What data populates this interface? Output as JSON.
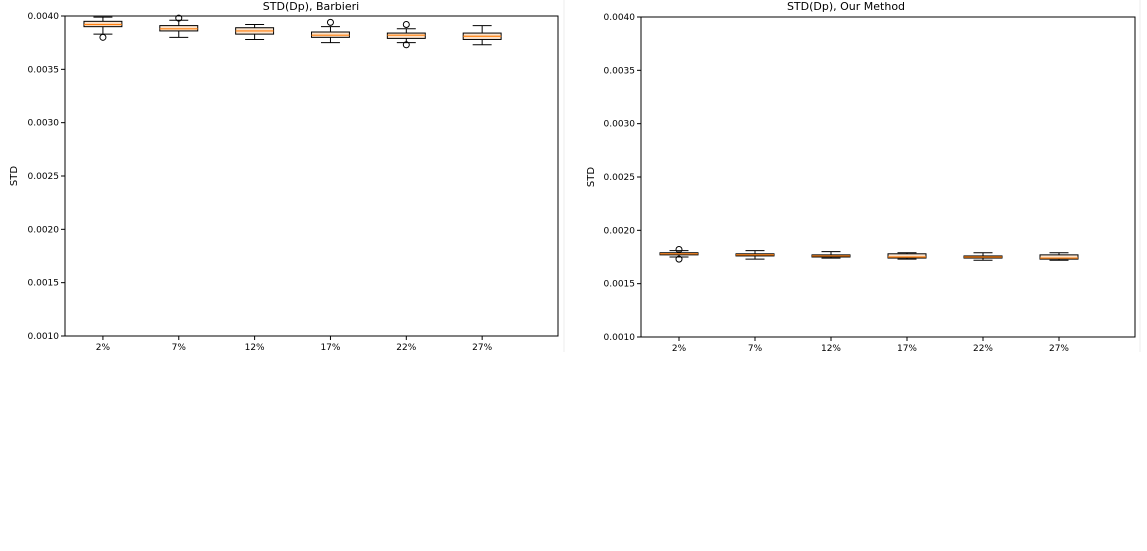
{
  "chart_data": [
    {
      "type": "boxplot",
      "title": "STD(Dp), Barbieri",
      "xlabel": "",
      "ylabel": "STD",
      "ylim": [
        0.001,
        0.004
      ],
      "yticks": [
        "0.0010",
        "0.0015",
        "0.0020",
        "0.0025",
        "0.0030",
        "0.0035",
        "0.0040"
      ],
      "categories": [
        "2%",
        "7%",
        "12%",
        "17%",
        "22%",
        "27%"
      ],
      "boxes": [
        {
          "whislo": 0.00383,
          "q1": 0.0039,
          "med": 0.00392,
          "q3": 0.00395,
          "whishi": 0.00399,
          "fliers": [
            0.0038
          ]
        },
        {
          "whislo": 0.0038,
          "q1": 0.00386,
          "med": 0.00388,
          "q3": 0.00391,
          "whishi": 0.00396,
          "fliers": [
            0.00398
          ]
        },
        {
          "whislo": 0.00378,
          "q1": 0.00383,
          "med": 0.00386,
          "q3": 0.00389,
          "whishi": 0.00392,
          "fliers": []
        },
        {
          "whislo": 0.00375,
          "q1": 0.0038,
          "med": 0.00382,
          "q3": 0.00385,
          "whishi": 0.0039,
          "fliers": [
            0.00394
          ]
        },
        {
          "whislo": 0.00375,
          "q1": 0.00379,
          "med": 0.00382,
          "q3": 0.00384,
          "whishi": 0.00388,
          "fliers": [
            0.00392,
            0.00373
          ]
        },
        {
          "whislo": 0.00373,
          "q1": 0.00378,
          "med": 0.00381,
          "q3": 0.00384,
          "whishi": 0.00391,
          "fliers": []
        }
      ]
    },
    {
      "type": "boxplot",
      "title": "STD(Dp), Our Method",
      "xlabel": "",
      "ylabel": "STD",
      "ylim": [
        0.001,
        0.004
      ],
      "yticks": [
        "0.0010",
        "0.0015",
        "0.0020",
        "0.0025",
        "0.0030",
        "0.0035",
        "0.0040"
      ],
      "categories": [
        "2%",
        "7%",
        "12%",
        "17%",
        "22%",
        "27%"
      ],
      "boxes": [
        {
          "whislo": 0.00175,
          "q1": 0.00177,
          "med": 0.00178,
          "q3": 0.00179,
          "whishi": 0.00181,
          "fliers": [
            0.00182,
            0.00173
          ]
        },
        {
          "whislo": 0.00173,
          "q1": 0.00176,
          "med": 0.00177,
          "q3": 0.00178,
          "whishi": 0.00181,
          "fliers": []
        },
        {
          "whislo": 0.00174,
          "q1": 0.00175,
          "med": 0.00176,
          "q3": 0.00177,
          "whishi": 0.0018,
          "fliers": []
        },
        {
          "whislo": 0.00173,
          "q1": 0.00174,
          "med": 0.00175,
          "q3": 0.00178,
          "whishi": 0.00179,
          "fliers": []
        },
        {
          "whislo": 0.00172,
          "q1": 0.00174,
          "med": 0.00175,
          "q3": 0.00176,
          "whishi": 0.00179,
          "fliers": []
        },
        {
          "whislo": 0.00172,
          "q1": 0.00173,
          "med": 0.00174,
          "q3": 0.00177,
          "whishi": 0.00179,
          "fliers": []
        }
      ]
    }
  ],
  "colors": {
    "box_fill": "#fbe3cc",
    "median": "#ff7f0e",
    "line": "#000000"
  }
}
